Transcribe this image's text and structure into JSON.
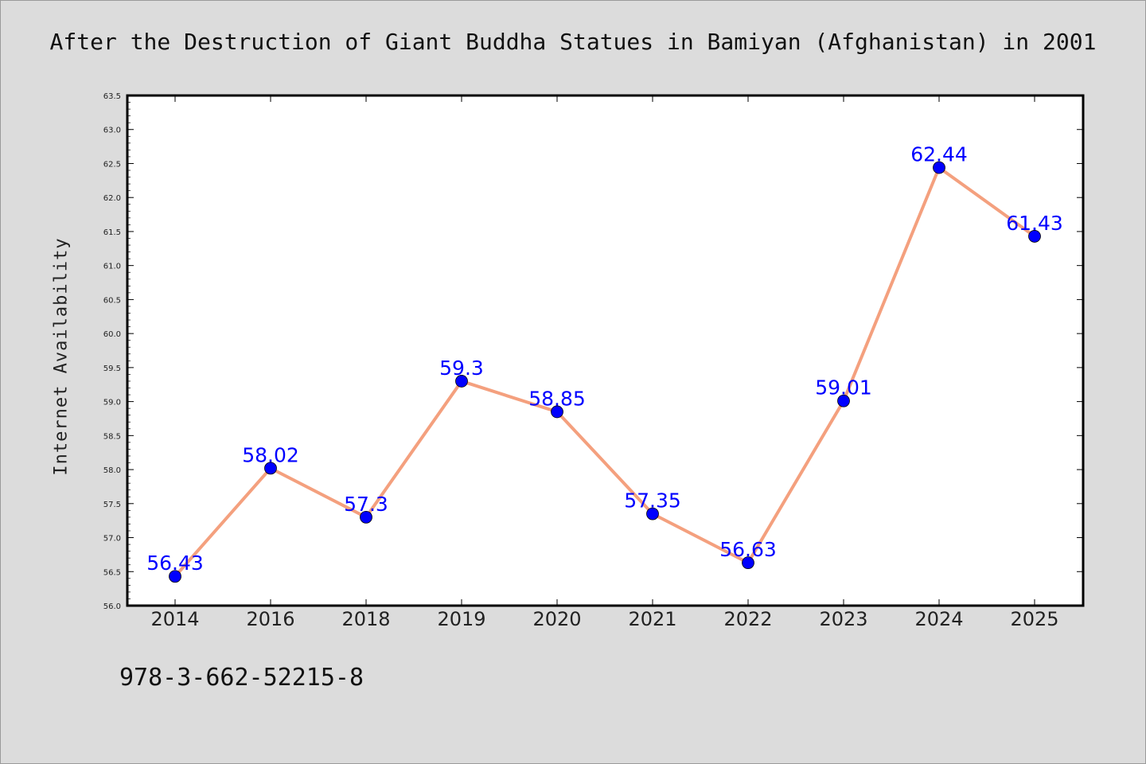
{
  "chart_data": {
    "type": "line",
    "title": "After the Destruction of Giant Buddha Statues in Bamiyan (Afghanistan) in 2001",
    "xlabel": "",
    "ylabel": "Internet Availability",
    "categories": [
      "2014",
      "2016",
      "2018",
      "2019",
      "2020",
      "2021",
      "2022",
      "2023",
      "2024",
      "2025"
    ],
    "series": [
      {
        "values": [
          56.43,
          58.02,
          57.3,
          59.3,
          58.85,
          57.35,
          56.63,
          59.01,
          62.44,
          61.43
        ],
        "data_labels": [
          "56.43",
          "58.02",
          "57.3",
          "59.3",
          "58.85",
          "57.35",
          "56.63",
          "59.01",
          "62.44",
          "61.43"
        ],
        "line_color": "#f4a07e",
        "marker_color": "#0000ff"
      }
    ],
    "ylim": [
      56.0,
      63.5
    ],
    "yticks": [
      "56.0",
      "56.5",
      "57.0",
      "57.5",
      "58.0",
      "58.5",
      "59.0",
      "59.5",
      "60.0",
      "60.5",
      "61.0",
      "61.5",
      "62.0",
      "62.5",
      "63.0",
      "63.5"
    ],
    "grid": false,
    "legend": "none"
  },
  "footer": {
    "isbn": "978-3-662-52215-8"
  },
  "colors": {
    "background": "#dcdcdc",
    "plot_background": "#ffffff",
    "line": "#f4a07e",
    "marker": "#0000ff",
    "label": "#0000ff"
  }
}
